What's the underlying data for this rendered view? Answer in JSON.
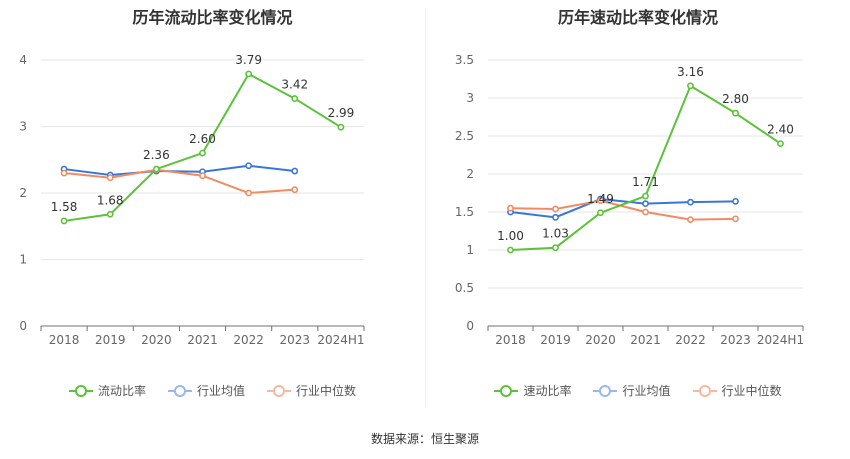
{
  "source_text": "数据来源：恒生聚源",
  "chart_data": [
    {
      "type": "line",
      "title": "历年流动比率变化情况",
      "categories": [
        "2018",
        "2019",
        "2020",
        "2021",
        "2022",
        "2023",
        "2024H1"
      ],
      "ylim": [
        0,
        4
      ],
      "yticks": [
        0,
        1,
        2,
        3,
        4
      ],
      "series": [
        {
          "name": "流动比率",
          "color": "#5cc23a",
          "values": [
            1.58,
            1.68,
            2.36,
            2.6,
            3.79,
            3.42,
            2.99
          ],
          "labels": [
            "1.58",
            "1.68",
            "2.36",
            "2.60",
            "3.79",
            "3.42",
            "2.99"
          ]
        },
        {
          "name": "行业均值",
          "color": "#3a76d8",
          "legend_color": "#9bb8ea",
          "values": [
            2.36,
            2.27,
            2.33,
            2.32,
            2.41,
            2.33,
            null
          ]
        },
        {
          "name": "行业中位数",
          "color": "#f08b63",
          "legend_color": "#f6b9a2",
          "values": [
            2.3,
            2.23,
            2.35,
            2.26,
            2.0,
            2.05,
            null
          ]
        }
      ]
    },
    {
      "type": "line",
      "title": "历年速动比率变化情况",
      "categories": [
        "2018",
        "2019",
        "2020",
        "2021",
        "2022",
        "2023",
        "2024H1"
      ],
      "ylim": [
        0,
        3.5
      ],
      "yticks": [
        0,
        0.5,
        1,
        1.5,
        2,
        2.5,
        3,
        3.5
      ],
      "series": [
        {
          "name": "速动比率",
          "color": "#5cc23a",
          "values": [
            1.0,
            1.03,
            1.49,
            1.71,
            3.16,
            2.8,
            2.4
          ],
          "labels": [
            "1.00",
            "1.03",
            "1.49",
            "1.71",
            "3.16",
            "2.80",
            "2.40"
          ]
        },
        {
          "name": "行业均值",
          "color": "#3a76d8",
          "legend_color": "#9bb8ea",
          "values": [
            1.5,
            1.43,
            1.67,
            1.61,
            1.63,
            1.64,
            null
          ]
        },
        {
          "name": "行业中位数",
          "color": "#f08b63",
          "legend_color": "#f6b9a2",
          "values": [
            1.55,
            1.54,
            1.65,
            1.5,
            1.4,
            1.41,
            null
          ]
        }
      ]
    }
  ]
}
